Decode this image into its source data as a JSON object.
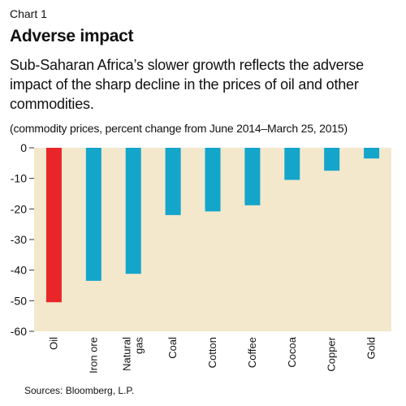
{
  "header": {
    "chart_label": "Chart 1",
    "title": "Adverse impact",
    "subtitle": "Sub-Saharan Africa’s slower growth reflects the adverse impact of the sharp decline in the prices of oil and other commodities.",
    "note": "(commodity prices, percent change from June 2014–March 25, 2015)"
  },
  "footer": {
    "source": "Sources: Bloomberg, L.P."
  },
  "colors": {
    "plot_background": "#f3e8cc",
    "highlight_bar": "#e8262a",
    "default_bar": "#14a5cb"
  },
  "chart_data": {
    "type": "bar",
    "categories": [
      [
        "Oil"
      ],
      [
        "Iron ore"
      ],
      [
        "Natural",
        "gas"
      ],
      [
        "Coal"
      ],
      [
        "Cotton"
      ],
      [
        "Coffee"
      ],
      [
        "Cocoa"
      ],
      [
        "Copper"
      ],
      [
        "Gold"
      ]
    ],
    "values": [
      -50.5,
      -43.5,
      -41.2,
      -22,
      -20.8,
      -18.8,
      -10.5,
      -7.5,
      -3.5
    ],
    "highlight_index": 0,
    "ylim": [
      -60,
      0
    ],
    "yticks": [
      0,
      -10,
      -20,
      -30,
      -40,
      -50,
      -60
    ],
    "grid": false,
    "title": "",
    "xlabel": "",
    "ylabel": ""
  }
}
